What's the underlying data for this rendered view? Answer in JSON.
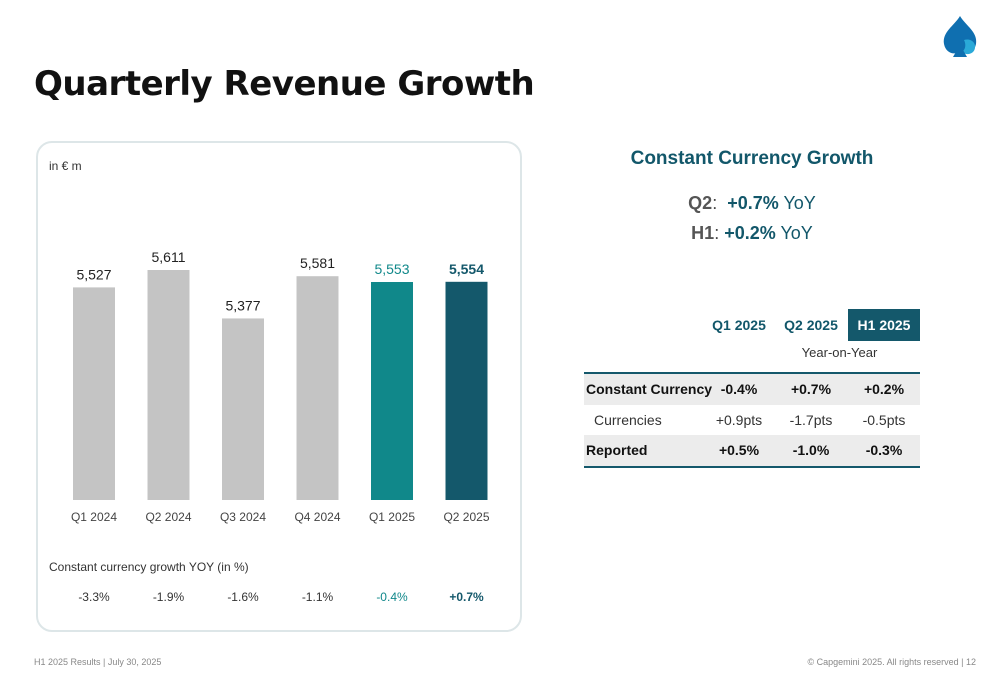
{
  "title": "Quarterly Revenue Growth",
  "colors": {
    "gray": "#c4c4c4",
    "teal": "#10888a",
    "dark_teal": "#14586b",
    "brand": "#0f6fb0"
  },
  "chart_data": {
    "type": "bar",
    "unit_label": "in € m",
    "categories": [
      "Q1 2024",
      "Q2 2024",
      "Q3 2024",
      "Q4 2024",
      "Q1 2025",
      "Q2 2025"
    ],
    "values": [
      5527,
      5611,
      5377,
      5581,
      5553,
      5554
    ],
    "value_labels": [
      "5,527",
      "5,611",
      "5,377",
      "5,581",
      "5,553",
      "5,554"
    ],
    "bar_colors": [
      "#c4c4c4",
      "#c4c4c4",
      "#c4c4c4",
      "#c4c4c4",
      "#10888a",
      "#14586b"
    ],
    "label_colors": [
      "#222222",
      "#222222",
      "#222222",
      "#222222",
      "#10888a",
      "#14586b"
    ],
    "growth_title": "Constant currency growth YOY (in %)",
    "growth_labels": [
      "-3.3%",
      "-1.9%",
      "-1.6%",
      "-1.1%",
      "-0.4%",
      "+0.7%"
    ],
    "growth_colors": [
      "#333333",
      "#333333",
      "#333333",
      "#333333",
      "#10888a",
      "#14586b"
    ],
    "growth_bold": [
      false,
      false,
      false,
      false,
      false,
      true
    ]
  },
  "constant_currency": {
    "title": "Constant Currency Growth",
    "q2_label": "Q2",
    "q2_value": "+0.7%",
    "h1_label": "H1",
    "h1_value": "+0.2%",
    "yoy": "YoY"
  },
  "table": {
    "headers": [
      "Q1 2025",
      "Q2 2025",
      "H1 2025"
    ],
    "subheader": "Year-on-Year",
    "rows": [
      {
        "label": "Constant Currency",
        "values": [
          "-0.4%",
          "+0.7%",
          "+0.2%"
        ]
      },
      {
        "label": "Currencies",
        "values": [
          "+0.9pts",
          "-1.7pts",
          "-0.5pts"
        ]
      },
      {
        "label": "Reported",
        "values": [
          "+0.5%",
          "-1.0%",
          "-0.3%"
        ]
      }
    ]
  },
  "footer": {
    "left": "H1 2025 Results | July 30, 2025",
    "right": "© Capgemini 2025. All rights reserved  |   12"
  }
}
